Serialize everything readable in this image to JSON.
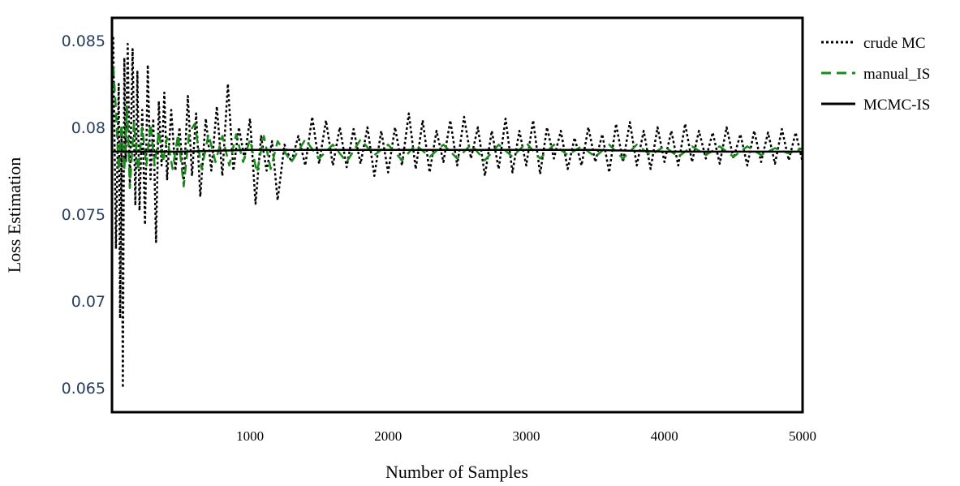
{
  "chart_data": {
    "type": "line",
    "title": "",
    "xlabel": "Number of Samples",
    "ylabel": "Loss Estimation",
    "xlim": [
      1,
      5000
    ],
    "ylim": [
      0.0636,
      0.0863
    ],
    "xticks": [
      1000,
      2000,
      3000,
      4000,
      5000
    ],
    "xtick_labels": [
      "1000",
      "2000",
      "3000",
      "4000",
      "5000"
    ],
    "yticks": [
      0.065,
      0.07,
      0.075,
      0.08,
      0.085
    ],
    "ytick_labels": [
      "0.065",
      "0.07",
      "0.075",
      "0.08",
      "0.085"
    ],
    "grid": false,
    "legend_position": "top-right-outside",
    "series": [
      {
        "name": "crude MC",
        "color": "#000000",
        "style": "dotted",
        "x": [
          10,
          30,
          50,
          60,
          70,
          80,
          90,
          100,
          115,
          130,
          150,
          170,
          185,
          200,
          220,
          240,
          260,
          280,
          300,
          320,
          340,
          360,
          380,
          400,
          430,
          460,
          490,
          520,
          550,
          580,
          610,
          640,
          680,
          720,
          760,
          800,
          840,
          880,
          920,
          960,
          1000,
          1040,
          1080,
          1120,
          1160,
          1200,
          1250,
          1300,
          1350,
          1400,
          1450,
          1500,
          1550,
          1600,
          1650,
          1700,
          1750,
          1800,
          1850,
          1900,
          1950,
          2000,
          2050,
          2100,
          2150,
          2200,
          2250,
          2300,
          2350,
          2400,
          2450,
          2500,
          2550,
          2600,
          2650,
          2700,
          2750,
          2800,
          2850,
          2900,
          2950,
          3000,
          3050,
          3100,
          3150,
          3200,
          3250,
          3300,
          3350,
          3400,
          3450,
          3500,
          3550,
          3600,
          3650,
          3700,
          3750,
          3800,
          3850,
          3900,
          3950,
          4000,
          4050,
          4100,
          4150,
          4200,
          4250,
          4300,
          4350,
          4400,
          4450,
          4500,
          4550,
          4600,
          4650,
          4700,
          4750,
          4800,
          4850,
          4900,
          4950,
          5000
        ],
        "values": [
          0.0852,
          0.073,
          0.0825,
          0.069,
          0.0795,
          0.065,
          0.084,
          0.078,
          0.0848,
          0.0765,
          0.0845,
          0.0755,
          0.0832,
          0.0752,
          0.081,
          0.0744,
          0.0836,
          0.077,
          0.0805,
          0.0734,
          0.0815,
          0.0778,
          0.082,
          0.077,
          0.081,
          0.0775,
          0.08,
          0.0768,
          0.0818,
          0.0772,
          0.0808,
          0.076,
          0.0805,
          0.0775,
          0.0812,
          0.0772,
          0.0825,
          0.0775,
          0.08,
          0.0782,
          0.0805,
          0.0756,
          0.0795,
          0.0775,
          0.0792,
          0.0758,
          0.079,
          0.078,
          0.0795,
          0.0778,
          0.0806,
          0.0779,
          0.0804,
          0.0778,
          0.08,
          0.0777,
          0.0799,
          0.0779,
          0.08,
          0.0772,
          0.0798,
          0.0774,
          0.08,
          0.0778,
          0.0808,
          0.0776,
          0.0804,
          0.0774,
          0.0798,
          0.078,
          0.0804,
          0.0778,
          0.0806,
          0.0782,
          0.08,
          0.0772,
          0.0798,
          0.0776,
          0.0805,
          0.0774,
          0.0798,
          0.0778,
          0.0804,
          0.0773,
          0.08,
          0.0782,
          0.0798,
          0.0776,
          0.0794,
          0.0778,
          0.08,
          0.078,
          0.0796,
          0.0774,
          0.0802,
          0.078,
          0.0803,
          0.0778,
          0.0798,
          0.0776,
          0.08,
          0.078,
          0.0798,
          0.0778,
          0.0802,
          0.078,
          0.0798,
          0.0782,
          0.0797,
          0.0779,
          0.08,
          0.0782,
          0.0796,
          0.0778,
          0.0798,
          0.078,
          0.0797,
          0.0779,
          0.0799,
          0.0781,
          0.0797,
          0.078
        ]
      },
      {
        "name": "manual_IS",
        "color": "#1a8a1a",
        "style": "dashed",
        "x": [
          10,
          30,
          50,
          70,
          90,
          110,
          130,
          160,
          190,
          220,
          250,
          280,
          310,
          340,
          370,
          400,
          440,
          480,
          520,
          560,
          600,
          650,
          700,
          750,
          800,
          850,
          900,
          950,
          1000,
          1050,
          1100,
          1150,
          1200,
          1300,
          1400,
          1500,
          1600,
          1700,
          1800,
          1900,
          2000,
          2100,
          2200,
          2300,
          2400,
          2500,
          2600,
          2700,
          2800,
          2900,
          3000,
          3100,
          3200,
          3300,
          3400,
          3500,
          3600,
          3700,
          3800,
          3900,
          4000,
          4100,
          4200,
          4300,
          4400,
          4500,
          4600,
          4700,
          4800,
          4900,
          5000
        ],
        "values": [
          0.0835,
          0.081,
          0.0775,
          0.0802,
          0.0775,
          0.0812,
          0.0765,
          0.0803,
          0.0775,
          0.08,
          0.0778,
          0.0802,
          0.0778,
          0.0798,
          0.078,
          0.0794,
          0.0776,
          0.0796,
          0.0766,
          0.0797,
          0.0802,
          0.0776,
          0.0796,
          0.078,
          0.0795,
          0.0778,
          0.0796,
          0.078,
          0.0793,
          0.0774,
          0.0795,
          0.0776,
          0.0792,
          0.078,
          0.0793,
          0.0782,
          0.079,
          0.078,
          0.0793,
          0.0784,
          0.079,
          0.0781,
          0.079,
          0.0783,
          0.079,
          0.0782,
          0.079,
          0.0781,
          0.079,
          0.0783,
          0.0791,
          0.0782,
          0.079,
          0.0784,
          0.0789,
          0.0783,
          0.079,
          0.0782,
          0.079,
          0.0784,
          0.0789,
          0.0783,
          0.0789,
          0.0784,
          0.0789,
          0.0783,
          0.0789,
          0.0784,
          0.0788,
          0.0785,
          0.0788
        ]
      },
      {
        "name": "MCMC-IS",
        "color": "#000000",
        "style": "solid",
        "x": [
          1,
          500,
          1000,
          1500,
          2000,
          2500,
          3000,
          3500,
          4000,
          4500,
          5000
        ],
        "values": [
          0.0786,
          0.0786,
          0.0787,
          0.0787,
          0.0787,
          0.0787,
          0.0787,
          0.0787,
          0.0786,
          0.0786,
          0.0786
        ]
      }
    ]
  }
}
